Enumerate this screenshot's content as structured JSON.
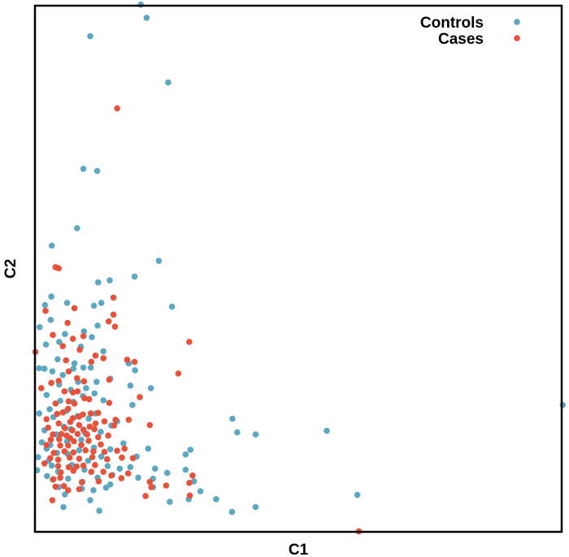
{
  "chart_data": {
    "type": "scatter",
    "title": "",
    "xlabel": "C1",
    "ylabel": "C2",
    "xlim": [
      0,
      100
    ],
    "ylim": [
      0,
      100
    ],
    "grid": false,
    "legend_position": "top-right",
    "series": [
      {
        "name": "Controls",
        "color": "#5ba8c0",
        "points": [
          [
            20.1,
            100.2
          ],
          [
            21.2,
            97.7
          ],
          [
            10.5,
            94.2
          ],
          [
            25.3,
            85.4
          ],
          [
            9.2,
            69.0
          ],
          [
            11.8,
            68.6
          ],
          [
            8.0,
            57.7
          ],
          [
            3.2,
            54.4
          ],
          [
            23.5,
            51.5
          ],
          [
            18.9,
            48.5
          ],
          [
            14.2,
            47.8
          ],
          [
            12.0,
            47.4
          ],
          [
            3.1,
            44.7
          ],
          [
            26.0,
            42.8
          ],
          [
            1.9,
            43.1
          ],
          [
            6.1,
            43.5
          ],
          [
            11.2,
            43.0
          ],
          [
            12.6,
            43.5
          ],
          [
            0.9,
            38.9
          ],
          [
            3.0,
            40.3
          ],
          [
            11.9,
            39.2
          ],
          [
            9.3,
            38.1
          ],
          [
            5.7,
            37.6
          ],
          [
            2.1,
            35.6
          ],
          [
            4.6,
            36.1
          ],
          [
            10.8,
            37.0
          ],
          [
            13.0,
            34.3
          ],
          [
            8.7,
            35.2
          ],
          [
            17.8,
            32.0
          ],
          [
            7.5,
            32.0
          ],
          [
            4.3,
            32.8
          ],
          [
            3.3,
            30.5
          ],
          [
            7.3,
            31.0
          ],
          [
            9.2,
            31.2
          ],
          [
            10.6,
            31.2
          ],
          [
            19.0,
            30.7
          ],
          [
            0.8,
            31.1
          ],
          [
            1.8,
            31.0
          ],
          [
            5.3,
            29.8
          ],
          [
            8.2,
            28.5
          ],
          [
            14.3,
            29.1
          ],
          [
            9.7,
            27.3
          ],
          [
            11.7,
            28.5
          ],
          [
            18.1,
            27.8
          ],
          [
            22.0,
            27.3
          ],
          [
            4.6,
            28.0
          ],
          [
            6.8,
            27.0
          ],
          [
            11.3,
            26.3
          ],
          [
            2.2,
            26.0
          ],
          [
            9.1,
            25.8
          ],
          [
            13.0,
            25.0
          ],
          [
            18.5,
            24.1
          ],
          [
            7.3,
            24.7
          ],
          [
            4.8,
            24.9
          ],
          [
            2.8,
            23.3
          ],
          [
            6.0,
            23.0
          ],
          [
            11.5,
            22.5
          ],
          [
            0.8,
            22.5
          ],
          [
            8.1,
            22.0
          ],
          [
            10.2,
            21.5
          ],
          [
            15.6,
            21.0
          ],
          [
            3.5,
            21.8
          ],
          [
            14.5,
            20.2
          ],
          [
            1.8,
            19.3
          ],
          [
            5.5,
            20.0
          ],
          [
            6.8,
            19.5
          ],
          [
            12.5,
            19.0
          ],
          [
            9.5,
            18.8
          ],
          [
            4.1,
            18.5
          ],
          [
            37.5,
            21.5
          ],
          [
            8.8,
            17.5
          ],
          [
            1.3,
            17.0
          ],
          [
            2.9,
            16.5
          ],
          [
            6.1,
            17.2
          ],
          [
            11.2,
            16.0
          ],
          [
            16.8,
            16.8
          ],
          [
            21.5,
            15.8
          ],
          [
            2.2,
            15.8
          ],
          [
            8.4,
            15.5
          ],
          [
            14.3,
            15.7
          ],
          [
            29.5,
            15.6
          ],
          [
            4.2,
            15.0
          ],
          [
            6.2,
            14.8
          ],
          [
            12.6,
            14.3
          ],
          [
            0.6,
            14.2
          ],
          [
            2.6,
            13.5
          ],
          [
            10.1,
            13.5
          ],
          [
            19.3,
            14.3
          ],
          [
            28.6,
            14.7
          ],
          [
            38.4,
            18.9
          ],
          [
            41.9,
            18.5
          ],
          [
            55.4,
            19.2
          ],
          [
            100.2,
            24.1
          ],
          [
            3.2,
            12.6
          ],
          [
            7.0,
            12.7
          ],
          [
            13.8,
            12.5
          ],
          [
            16.1,
            12.0
          ],
          [
            18.1,
            12.3
          ],
          [
            22.8,
            12.0
          ],
          [
            28.6,
            11.8
          ],
          [
            0.4,
            11.7
          ],
          [
            4.4,
            11.4
          ],
          [
            9.4,
            11.8
          ],
          [
            14.7,
            10.8
          ],
          [
            25.1,
            11.2
          ],
          [
            2.3,
            10.6
          ],
          [
            6.3,
            10.1
          ],
          [
            11.9,
            10.3
          ],
          [
            19.6,
            10.3
          ],
          [
            22.4,
            10.1
          ],
          [
            9.0,
            9.5
          ],
          [
            3.4,
            9.9
          ],
          [
            4.5,
            8.5
          ],
          [
            13.5,
            8.4
          ],
          [
            30.2,
            9.6
          ],
          [
            31.4,
            7.7
          ],
          [
            8.9,
            8.2
          ],
          [
            11.1,
            7.9
          ],
          [
            14.3,
            9.0
          ],
          [
            61.2,
            7.0
          ],
          [
            22.4,
            8.5
          ],
          [
            5.7,
            7.1
          ],
          [
            29.2,
            6.2
          ],
          [
            10.5,
            6.0
          ],
          [
            5.4,
            4.7
          ],
          [
            37.4,
            3.8
          ],
          [
            41.9,
            4.7
          ],
          [
            34.4,
            6.2
          ],
          [
            25.6,
            5.7
          ],
          [
            12.2,
            4.0
          ]
        ]
      },
      {
        "name": "Cases",
        "color": "#e8513a",
        "points": [
          [
            15.6,
            80.5
          ],
          [
            3.9,
            50.3
          ],
          [
            4.5,
            50.1
          ],
          [
            14.9,
            44.5
          ],
          [
            2.0,
            42.0
          ],
          [
            7.5,
            42.5
          ],
          [
            14.9,
            41.3
          ],
          [
            6.2,
            39.7
          ],
          [
            3.4,
            37.4
          ],
          [
            7.2,
            36.7
          ],
          [
            9.2,
            37.2
          ],
          [
            14.0,
            40.0
          ],
          [
            15.2,
            39.0
          ],
          [
            29.3,
            36.1
          ],
          [
            0.1,
            34.2
          ],
          [
            5.3,
            35.3
          ],
          [
            8.5,
            34.6
          ],
          [
            11.5,
            33.5
          ],
          [
            13.0,
            33.0
          ],
          [
            5.9,
            32.6
          ],
          [
            10.7,
            32.3
          ],
          [
            17.5,
            32.7
          ],
          [
            18.9,
            32.3
          ],
          [
            6.4,
            30.5
          ],
          [
            14.1,
            28.9
          ],
          [
            27.2,
            30.1
          ],
          [
            4.5,
            28.7
          ],
          [
            8.0,
            29.2
          ],
          [
            9.3,
            28.6
          ],
          [
            3.1,
            28.3
          ],
          [
            1.2,
            27.3
          ],
          [
            5.6,
            26.7
          ],
          [
            7.2,
            26.5
          ],
          [
            8.1,
            26.7
          ],
          [
            9.4,
            25.4
          ],
          [
            10.3,
            25.2
          ],
          [
            6.4,
            24.8
          ],
          [
            3.9,
            24.4
          ],
          [
            6.3,
            23.4
          ],
          [
            7.5,
            24.4
          ],
          [
            14.1,
            24.5
          ],
          [
            19.9,
            25.6
          ],
          [
            10.6,
            22.5
          ],
          [
            12.0,
            22.6
          ],
          [
            4.2,
            22.4
          ],
          [
            5.3,
            22.7
          ],
          [
            7.2,
            21.6
          ],
          [
            8.4,
            21.9
          ],
          [
            9.1,
            22.3
          ],
          [
            2.2,
            21.4
          ],
          [
            13.2,
            21.0
          ],
          [
            15.3,
            21.3
          ],
          [
            17.8,
            21.3
          ],
          [
            4.5,
            20.6
          ],
          [
            6.7,
            20.9
          ],
          [
            8.4,
            20.3
          ],
          [
            10.4,
            20.0
          ],
          [
            11.5,
            20.6
          ],
          [
            15.0,
            20.2
          ],
          [
            21.8,
            20.3
          ],
          [
            2.5,
            19.8
          ],
          [
            5.7,
            19.7
          ],
          [
            7.1,
            19.3
          ],
          [
            9.2,
            19.4
          ],
          [
            11.3,
            19.5
          ],
          [
            3.4,
            18.5
          ],
          [
            5.0,
            18.6
          ],
          [
            6.0,
            18.3
          ],
          [
            8.1,
            18.6
          ],
          [
            9.9,
            18.5
          ],
          [
            12.0,
            18.0
          ],
          [
            13.9,
            18.3
          ],
          [
            3.0,
            17.5
          ],
          [
            4.6,
            17.6
          ],
          [
            6.7,
            17.8
          ],
          [
            7.4,
            17.2
          ],
          [
            10.2,
            17.3
          ],
          [
            2.2,
            16.5
          ],
          [
            4.8,
            16.4
          ],
          [
            6.3,
            16.4
          ],
          [
            8.8,
            16.5
          ],
          [
            12.5,
            16.6
          ],
          [
            9.6,
            15.5
          ],
          [
            5.6,
            15.3
          ],
          [
            3.6,
            15.0
          ],
          [
            7.3,
            15.1
          ],
          [
            11.1,
            15.3
          ],
          [
            13.2,
            15.2
          ],
          [
            15.6,
            15.4
          ],
          [
            17.0,
            15.8
          ],
          [
            2.9,
            14.0
          ],
          [
            4.4,
            13.7
          ],
          [
            6.6,
            14.1
          ],
          [
            8.4,
            13.9
          ],
          [
            10.9,
            14.2
          ],
          [
            1.8,
            13.0
          ],
          [
            13.7,
            13.8
          ],
          [
            16.5,
            14.1
          ],
          [
            18.6,
            14.0
          ],
          [
            4.4,
            12.5
          ],
          [
            6.4,
            12.3
          ],
          [
            7.9,
            12.4
          ],
          [
            9.2,
            12.6
          ],
          [
            11.4,
            12.7
          ],
          [
            7.3,
            11.6
          ],
          [
            4.9,
            11.3
          ],
          [
            10.7,
            11.4
          ],
          [
            13.0,
            11.4
          ],
          [
            4.8,
            10.3
          ],
          [
            17.7,
            11.1
          ],
          [
            14.5,
            10.7
          ],
          [
            16.4,
            10.2
          ],
          [
            29.9,
            10.7
          ],
          [
            3.5,
            10.0
          ],
          [
            8.9,
            9.4
          ],
          [
            29.3,
            9.3
          ],
          [
            3.9,
            8.6
          ],
          [
            21.8,
            9.5
          ],
          [
            5.5,
            8.7
          ],
          [
            8.4,
            8.1
          ],
          [
            22.1,
            8.5
          ],
          [
            6.3,
            7.9
          ],
          [
            21.0,
            6.8
          ],
          [
            29.4,
            6.9
          ],
          [
            3.3,
            6.0
          ],
          [
            61.5,
            0.1
          ],
          [
            24.9,
            8.8
          ],
          [
            12.1,
            9.6
          ]
        ]
      }
    ]
  }
}
